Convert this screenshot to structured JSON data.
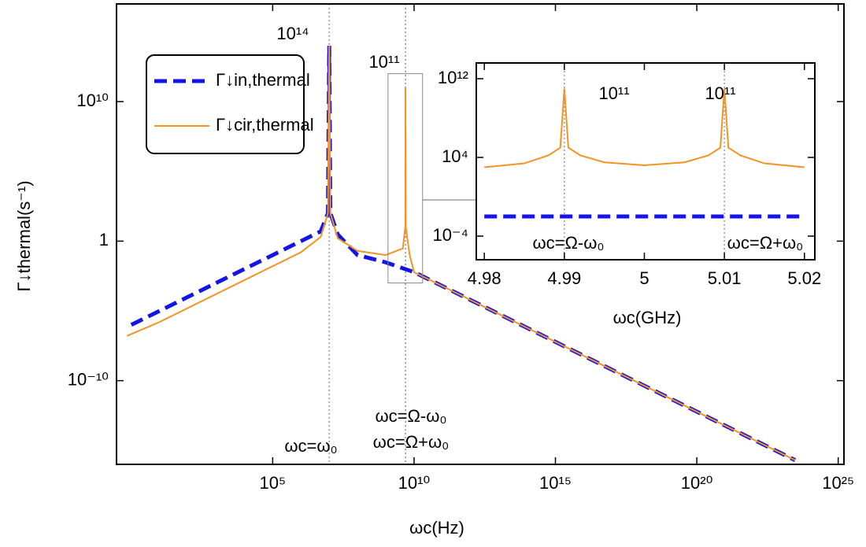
{
  "chart_data": [
    {
      "type": "line",
      "xlabel": "ωc(Hz)",
      "ylabel": "Γ↓thermal(s⁻¹)",
      "xlog": true,
      "ylog": true,
      "xlim": [
        0.3,
        1.6e+25
      ],
      "ylim": [
        1e-16,
        1e+17
      ],
      "xticks": [
        {
          "value": 100000.0,
          "label": "10⁵"
        },
        {
          "value": 10000000000.0,
          "label": "10¹⁰"
        },
        {
          "value": 1000000000000000.0,
          "label": "10¹⁵"
        },
        {
          "value": 1e+20,
          "label": "10²⁰"
        },
        {
          "value": 1e+25,
          "label": "10²⁵"
        }
      ],
      "yticks": [
        {
          "value": 1e-10,
          "label": "10⁻¹⁰"
        },
        1,
        {
          "value": 10000000000.0,
          "label": "10¹⁰"
        }
      ],
      "vlines": [
        10000000.0,
        4990000000.0,
        5010000000.0
      ],
      "inset_region": {
        "xlim": [
          1200000000.0,
          20000000000.0
        ],
        "ylim": [
          0.001,
          1000000000000.0
        ]
      },
      "series": [
        {
          "name": "Γ↓in,thermal",
          "color": "#1414e6",
          "dash": true,
          "x": [
            1,
            10,
            100,
            1000,
            10000,
            100000,
            1000000,
            5000000,
            9000000,
            10000000,
            11000000,
            20000000,
            100000000,
            1000000000,
            10000000000,
            1000000000000.0,
            100000000000000.0,
            1e+16,
            1e+18,
            1e+20,
            1e+22,
            3e+23
          ],
          "values": [
            1e-06,
            1e-05,
            0.0001,
            0.001,
            0.01,
            0.1,
            1,
            5,
            100,
            100000000000000.0,
            100,
            3,
            0.1,
            0.03,
            0.006,
            6e-05,
            6e-07,
            6e-09,
            6e-11,
            6e-13,
            6e-15,
            2e-16
          ]
        },
        {
          "name": "Γ↓cir,thermal",
          "color": "#f39323",
          "dash": false,
          "x": [
            0.7,
            10,
            100,
            1000,
            10000,
            100000,
            1000000,
            5000000,
            9000000,
            10000000,
            11000000,
            20000000,
            100000000,
            1000000000,
            4000000000,
            4900000000,
            5000000000,
            5100000000,
            7000000000,
            10000000000,
            1000000000000.0,
            100000000000000.0,
            1e+16,
            1e+18,
            1e+20,
            1e+22,
            3e+23
          ],
          "values": [
            1.6e-07,
            1.6e-06,
            1.6e-05,
            0.00016,
            0.0016,
            0.016,
            0.16,
            2,
            100,
            100000000000000.0,
            100,
            1.6,
            0.2,
            0.1,
            0.3,
            10,
            100000000000.0,
            10,
            0.1,
            0.006,
            6e-05,
            6e-07,
            6e-09,
            6e-11,
            6e-13,
            6e-15,
            2e-16
          ]
        }
      ],
      "annotations": [
        {
          "text": "10¹⁴",
          "color": "#1414e6"
        },
        {
          "text": "10¹¹",
          "color": "#f39323"
        },
        {
          "text": "ωc=ω₀",
          "color": "#1414e6"
        },
        {
          "text": "ωc=Ω-ω₀",
          "color": "#f39323"
        },
        {
          "text": "ωc=Ω+ω₀",
          "color": "#f39323"
        }
      ]
    },
    {
      "type": "line",
      "inset": true,
      "xlabel": "ωc(GHz)",
      "xlog": false,
      "ylog": true,
      "xlim": [
        4.979,
        5.0213
      ],
      "ylim": [
        4e-07,
        40000000000000.0
      ],
      "xticks": [
        4.98,
        4.99,
        5,
        5.01,
        5.02
      ],
      "yticks": [
        {
          "value": 0.0001,
          "label": "10⁻⁴"
        },
        {
          "value": 10000.0,
          "label": "10⁴"
        },
        {
          "value": 1000000000000.0,
          "label": "10¹²"
        }
      ],
      "vlines": [
        4.99,
        5.01
      ],
      "series": [
        {
          "color": "#f39323",
          "dash": false,
          "x": [
            4.98,
            4.985,
            4.988,
            4.9895,
            4.99,
            4.9905,
            4.992,
            4.995,
            5,
            5.005,
            5.008,
            5.0095,
            5.01,
            5.0105,
            5.012,
            5.015,
            5.02
          ],
          "values": [
            1000,
            2500,
            16000,
            100000,
            100000000000.0,
            100000,
            16000,
            3200,
            1600,
            3200,
            16000,
            100000,
            100000000000.0,
            100000,
            16000,
            2500,
            1000
          ]
        },
        {
          "color": "#1414e6",
          "dash": true,
          "x": [
            4.98,
            5.02
          ],
          "values": [
            0.01,
            0.01
          ]
        }
      ],
      "annotations": [
        {
          "text": "10¹¹",
          "color": "#f39323"
        },
        {
          "text": "10¹¹",
          "color": "#f39323"
        },
        {
          "text": "ωc=Ω-ω₀",
          "color": "#f39323"
        },
        {
          "text": "ωc=Ω+ω₀",
          "color": "#f39323"
        }
      ]
    }
  ]
}
